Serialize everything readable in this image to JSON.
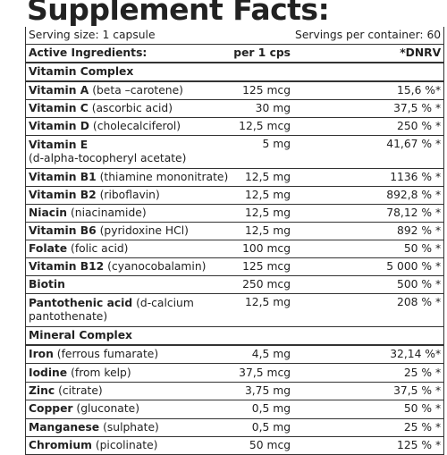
{
  "title": "Supplement Facts:",
  "serving": {
    "size": "Serving size: 1 capsule",
    "per_container": "Servings per container: 60"
  },
  "header": {
    "ingredients": "Active Ingredients:",
    "amount": "per 1 cps",
    "dnrv": "*DNRV"
  },
  "sections": [
    {
      "title": "Vitamin Complex",
      "rows": [
        {
          "name": "Vitamin A",
          "detail": "(beta –carotene)",
          "amount": "125 mcg",
          "dnrv": "15,6 %*"
        },
        {
          "name": "Vitamin C",
          "detail": "(ascorbic acid)",
          "amount": "30 mg",
          "dnrv": "37,5 % *"
        },
        {
          "name": "Vitamin D",
          "detail": "(cholecalciferol)",
          "amount": "12,5 mcg",
          "dnrv": "250 % *"
        },
        {
          "name": "Vitamin E",
          "detail": "(d-alpha-tocopheryl acetate)",
          "amount": "5 mg",
          "dnrv": "41,67 % *"
        },
        {
          "name": "Vitamin B1",
          "detail": "(thiamine mononitrate)",
          "amount": "12,5 mg",
          "dnrv": "1136 % *"
        },
        {
          "name": "Vitamin B2",
          "detail": "(riboflavin)",
          "amount": "12,5 mg",
          "dnrv": "892,8 % *"
        },
        {
          "name": "Niacin",
          "detail": "(niacinamide)",
          "amount": "12,5 mg",
          "dnrv": "78,12 % *"
        },
        {
          "name": "Vitamin B6",
          "detail": "(pyridoxine HCl)",
          "amount": "12,5 mg",
          "dnrv": "892 % *"
        },
        {
          "name": "Folate",
          "detail": "(folic acid)",
          "amount": "100 mcg",
          "dnrv": "50 % *"
        },
        {
          "name": "Vitamin B12",
          "detail": "(cyanocobalamin)",
          "amount": "125 mcg",
          "dnrv": "5 000 % *"
        },
        {
          "name": "Biotin",
          "amount": "250 mcg",
          "dnrv": "500 % *"
        },
        {
          "name": "Pantothenic acid",
          "detail": "(d-calcium pantothenate)",
          "amount": "12,5 mg",
          "dnrv": "208 % *"
        }
      ]
    },
    {
      "title": "Mineral Complex",
      "rows": [
        {
          "name": "Iron",
          "detail": "(ferrous fumarate)",
          "amount": "4,5 mg",
          "dnrv": "32,14 %*"
        },
        {
          "name": "Iodine",
          "detail": "(from kelp)",
          "amount": "37,5 mcg",
          "dnrv": "25 % *"
        },
        {
          "name": "Zinc",
          "detail": "(citrate)",
          "amount": "3,75 mg",
          "dnrv": "37,5 % *"
        },
        {
          "name": "Copper",
          "detail": "(gluconate)",
          "amount": "0,5 mg",
          "dnrv": "50 % *"
        },
        {
          "name": "Manganese",
          "detail": "(sulphate)",
          "amount": "0,5 mg",
          "dnrv": "25 % *"
        },
        {
          "name": "Chromium",
          "detail": "(picolinate)",
          "amount": "50 mcg",
          "dnrv": "125 % *"
        }
      ]
    }
  ]
}
